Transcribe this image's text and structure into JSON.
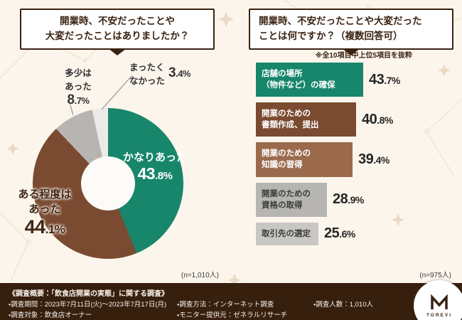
{
  "colors": {
    "teal": "#17866b",
    "brown": "#7a4a31",
    "brown_light": "#9b6a4d",
    "gray": "#b7b5b2",
    "gray_light": "#c9c7c4",
    "sliver": "#eceae6",
    "dark_brown": "#3a2212",
    "footer_bg": "#371f0e",
    "background": "#fbf5ec"
  },
  "left": {
    "question": "開業時、不安だったことや\n大変だったことはありましたか？",
    "n_label": "(n=1,010人)",
    "pie_labels": [
      {
        "text": "かなりあった",
        "big": "43",
        "small": ".8%"
      },
      {
        "text": "ある程度は\nあった",
        "big": "44",
        "small": ".1%"
      },
      {
        "text": "多少は\nあった",
        "big": "8",
        "small": ".7%"
      },
      {
        "text": "まったく\nなかった",
        "big": "3",
        "small": ".4%"
      }
    ]
  },
  "right": {
    "question": "開業時、不安だったことや大変だった\nことは何ですか？（複数回答可）",
    "note": "※全10項目中上位5項目を抜粋",
    "n_label": "(n=975人)"
  },
  "chart_data": [
    {
      "type": "pie",
      "title": "開業時、不安だったことや大変だったことはありましたか？",
      "labels": [
        "かなりあった",
        "ある程度はあった",
        "多少はあった",
        "まったくなかった"
      ],
      "values": [
        43.8,
        44.1,
        8.7,
        3.4
      ],
      "colors": [
        "#17866b",
        "#7a4a31",
        "#b7b5b2",
        "#eceae6"
      ],
      "donut": true,
      "n": "n=1,010人"
    },
    {
      "type": "bar",
      "title": "開業時、不安だったことや大変だったことは何ですか？（複数回答可）",
      "note": "※全10項目中上位5項目を抜粋",
      "categories": [
        "店舗の場所\n（物件など）の確保",
        "開業のための\n書類作成、提出",
        "開業のための\n知識の習得",
        "開業のための\n資格の取得",
        "取引先の選定"
      ],
      "values": [
        43.7,
        40.8,
        39.4,
        28.9,
        25.6
      ],
      "colors": [
        "#17866b",
        "#7a4a31",
        "#9b6a4d",
        "#b7b5b2",
        "#c9c7c4"
      ],
      "label_colors": [
        "#ffffff",
        "#ffffff",
        "#ffffff",
        "#3c3c3c",
        "#3c3c3c"
      ],
      "xlim": [
        0,
        50
      ],
      "n": "n=975人"
    }
  ],
  "footer": {
    "title": "《調査概要：「飲食店開業の実態」に関する調査》",
    "items": [
      "・調査期間：2023年7月11日(火)〜2023年7月17日(月)",
      "・調査対象：飲食店オーナー",
      "・調査方法：インターネット調査",
      "・モニター提供元：ゼネラルリサーチ",
      "・調査人数：1,010人"
    ],
    "logo_text": "TOREVI"
  }
}
